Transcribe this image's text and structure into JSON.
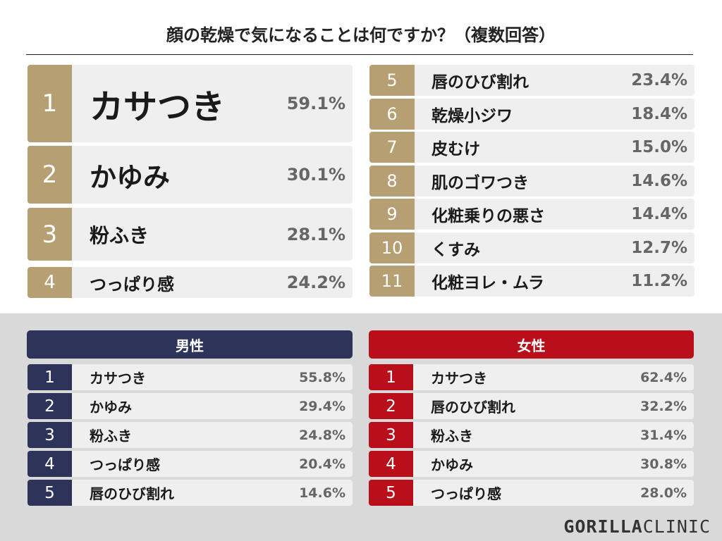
{
  "title": "顔の乾燥で気になることは何ですか？（複数回答）",
  "colors": {
    "gold": "#b79f74",
    "navy": "#2e335a",
    "red": "#b80f1a",
    "row_bg": "#efefef",
    "panel_bg": "#d9d9d9"
  },
  "chart_data": [
    {
      "type": "table",
      "title": "顔の乾燥で気になることは何ですか？（複数回答）",
      "rows": [
        {
          "rank": "1",
          "label": "カサつき",
          "value": "59.1%"
        },
        {
          "rank": "2",
          "label": "かゆみ",
          "value": "30.1%"
        },
        {
          "rank": "3",
          "label": "粉ふき",
          "value": "28.1%"
        },
        {
          "rank": "4",
          "label": "つっぱり感",
          "value": "24.2%"
        },
        {
          "rank": "5",
          "label": "唇のひび割れ",
          "value": "23.4%"
        },
        {
          "rank": "6",
          "label": "乾燥小ジワ",
          "value": "18.4%"
        },
        {
          "rank": "7",
          "label": "皮むけ",
          "value": "15.0%"
        },
        {
          "rank": "8",
          "label": "肌のゴワつき",
          "value": "14.6%"
        },
        {
          "rank": "9",
          "label": "化粧乗りの悪さ",
          "value": "14.4%"
        },
        {
          "rank": "10",
          "label": "くすみ",
          "value": "12.7%"
        },
        {
          "rank": "11",
          "label": "化粧ヨレ・ムラ",
          "value": "11.2%"
        }
      ]
    },
    {
      "type": "table",
      "title": "男性",
      "rows": [
        {
          "rank": "1",
          "label": "カサつき",
          "value": "55.8%"
        },
        {
          "rank": "2",
          "label": "かゆみ",
          "value": "29.4%"
        },
        {
          "rank": "3",
          "label": "粉ふき",
          "value": "24.8%"
        },
        {
          "rank": "4",
          "label": "つっぱり感",
          "value": "20.4%"
        },
        {
          "rank": "5",
          "label": "唇のひび割れ",
          "value": "14.6%"
        }
      ]
    },
    {
      "type": "table",
      "title": "女性",
      "rows": [
        {
          "rank": "1",
          "label": "カサつき",
          "value": "62.4%"
        },
        {
          "rank": "2",
          "label": "唇のひび割れ",
          "value": "32.2%"
        },
        {
          "rank": "3",
          "label": "粉ふき",
          "value": "31.4%"
        },
        {
          "rank": "4",
          "label": "かゆみ",
          "value": "30.8%"
        },
        {
          "rank": "5",
          "label": "つっぱり感",
          "value": "28.0%"
        }
      ]
    }
  ],
  "logo": {
    "bold": "GORILLA",
    "light": "CLINIC"
  }
}
